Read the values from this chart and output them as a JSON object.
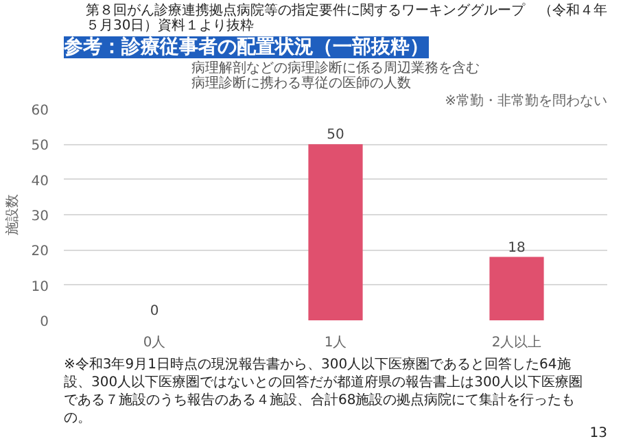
{
  "chart_data": {
    "type": "bar",
    "title": "参考：診療従事者の配置状況（一部抜粋）",
    "subtitle": "病理解剖などの病理診断に係る周辺業務を含む病理診断に携わる専従の医師の人数",
    "ylabel": "施設数",
    "categories": [
      "0人",
      "1人",
      "2人以上"
    ],
    "values": [
      0,
      50,
      18
    ],
    "color": "#e0506e",
    "data_labels": true,
    "ylim": [
      0,
      60
    ],
    "yticks": [
      0,
      10,
      20,
      30,
      40,
      50,
      60
    ],
    "grid": "y",
    "annotations": [
      "第８回がん診療連携拠点病院等の指定要件に関するワーキンググループ　（令和４年５月30日）資料１より抜粋",
      "※常勤・非常勤を問わない",
      "※令和3年9月1日時点の現況報告書から、300人以下医療圏であると回答した64施設、300人以下医療圏ではないとの回答だが都道府県の報告書上は300人以下医療圏である７施設のうち報告のある４施設、合計68施設の拠点病院にて集計を行ったもの。",
      "13"
    ]
  }
}
